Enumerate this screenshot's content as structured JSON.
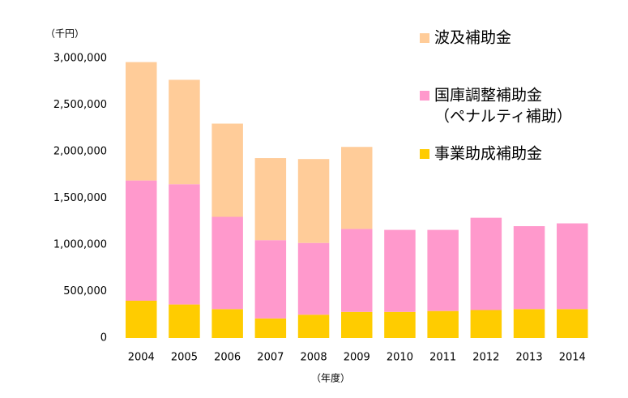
{
  "chart_data": {
    "type": "bar",
    "stacked": true,
    "categories": [
      "2004",
      "2005",
      "2006",
      "2007",
      "2008",
      "2009",
      "2010",
      "2011",
      "2012",
      "2013",
      "2014"
    ],
    "series": [
      {
        "name": "事業助成補助金",
        "color": "#FFCC00",
        "values": [
          400000,
          360000,
          310000,
          210000,
          250000,
          280000,
          280000,
          290000,
          300000,
          310000,
          310000
        ]
      },
      {
        "name": "国庫調整補助金",
        "name_note": "（ペナルティ補助）",
        "color": "#FF99CC",
        "values": [
          1290000,
          1290000,
          990000,
          840000,
          770000,
          890000,
          880000,
          870000,
          990000,
          890000,
          920000
        ]
      },
      {
        "name": "波及補助金",
        "color": "#FFCC99",
        "values": [
          1270000,
          1120000,
          1000000,
          880000,
          900000,
          880000,
          0,
          0,
          0,
          0,
          0
        ]
      }
    ],
    "xlabel": "（年度）",
    "ylabel": "（千円）",
    "ylim": [
      0,
      3000000
    ],
    "yticks": [
      0,
      500000,
      1000000,
      1500000,
      2000000,
      2500000,
      3000000
    ],
    "ytick_labels": [
      "0",
      "500,000",
      "1,000,000",
      "1,500,000",
      "2,000,000",
      "2,500,000",
      "3,000,000"
    ],
    "grid": false,
    "legend_position": "top-right"
  }
}
